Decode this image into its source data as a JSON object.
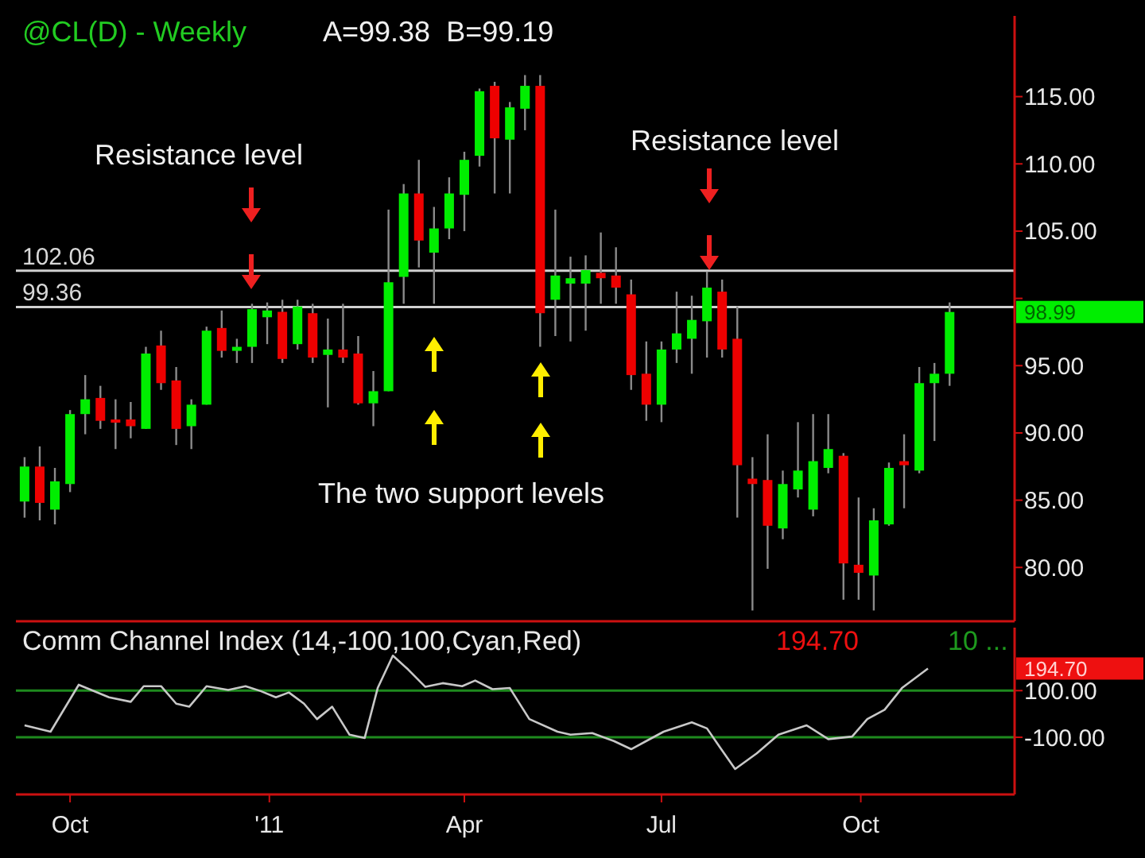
{
  "chart_data": [
    {
      "type": "candlestick",
      "title": "@CL(D) - Weekly",
      "subtitle": "A=99.38  B=99.19",
      "x": [
        "2010-09-10",
        "2010-09-17",
        "2010-09-24",
        "2010-10-01",
        "2010-10-08",
        "2010-10-15",
        "2010-10-22",
        "2010-10-29",
        "2010-11-05",
        "2010-11-12",
        "2010-11-19",
        "2010-11-26",
        "2010-12-03",
        "2010-12-10",
        "2010-12-17",
        "2010-12-24",
        "2010-12-31",
        "2011-01-07",
        "2011-01-14",
        "2011-01-21",
        "2011-01-28",
        "2011-02-04",
        "2011-02-11",
        "2011-02-18",
        "2011-02-25",
        "2011-03-04",
        "2011-03-11",
        "2011-03-18",
        "2011-03-25",
        "2011-04-01",
        "2011-04-08",
        "2011-04-15",
        "2011-04-22",
        "2011-04-29",
        "2011-05-06",
        "2011-05-13",
        "2011-05-20",
        "2011-05-27",
        "2011-06-03",
        "2011-06-10",
        "2011-06-17",
        "2011-06-24",
        "2011-07-01",
        "2011-07-08",
        "2011-07-15",
        "2011-07-22",
        "2011-07-29",
        "2011-08-05",
        "2011-08-12",
        "2011-08-19",
        "2011-08-26",
        "2011-09-02",
        "2011-09-09",
        "2011-09-16",
        "2011-09-23",
        "2011-09-30",
        "2011-10-07",
        "2011-10-14",
        "2011-10-21",
        "2011-10-28",
        "2011-11-04",
        "2011-11-11"
      ],
      "ohlc": [
        [
          84.9,
          88.2,
          83.7,
          87.5
        ],
        [
          87.5,
          89.0,
          83.5,
          84.8
        ],
        [
          84.3,
          87.4,
          83.2,
          86.4
        ],
        [
          86.2,
          91.7,
          85.6,
          91.4
        ],
        [
          91.4,
          94.3,
          89.9,
          92.5
        ],
        [
          92.6,
          93.5,
          90.3,
          90.9
        ],
        [
          91.0,
          92.5,
          88.8,
          90.8
        ],
        [
          91.0,
          92.3,
          89.6,
          90.5
        ],
        [
          90.3,
          96.4,
          90.3,
          95.9
        ],
        [
          96.5,
          97.6,
          93.2,
          93.7
        ],
        [
          93.9,
          94.9,
          89.1,
          90.3
        ],
        [
          90.5,
          92.5,
          88.8,
          92.1
        ],
        [
          92.1,
          97.9,
          92.1,
          97.6
        ],
        [
          97.8,
          99.1,
          95.6,
          96.1
        ],
        [
          96.1,
          97.0,
          95.2,
          96.4
        ],
        [
          96.4,
          99.6,
          95.2,
          99.2
        ],
        [
          98.6,
          99.7,
          96.6,
          99.1
        ],
        [
          99.0,
          99.9,
          95.2,
          95.5
        ],
        [
          96.6,
          99.9,
          96.2,
          99.4
        ],
        [
          98.9,
          99.6,
          95.2,
          95.6
        ],
        [
          95.8,
          98.5,
          91.9,
          96.2
        ],
        [
          96.2,
          99.6,
          95.2,
          95.6
        ],
        [
          95.9,
          97.2,
          92.1,
          92.2
        ],
        [
          92.2,
          94.6,
          90.5,
          93.1
        ],
        [
          93.1,
          106.6,
          93.1,
          101.2
        ],
        [
          101.6,
          108.5,
          99.6,
          107.8
        ],
        [
          107.8,
          110.3,
          102.3,
          104.3
        ],
        [
          103.4,
          106.8,
          99.6,
          105.2
        ],
        [
          105.2,
          109.0,
          104.4,
          107.8
        ],
        [
          107.7,
          110.9,
          105.0,
          110.3
        ],
        [
          110.6,
          115.6,
          109.8,
          115.4
        ],
        [
          115.8,
          116.1,
          107.8,
          111.9
        ],
        [
          111.8,
          114.6,
          107.8,
          114.2
        ],
        [
          114.1,
          116.6,
          112.5,
          115.8
        ],
        [
          115.8,
          116.6,
          96.4,
          98.9
        ],
        [
          99.9,
          106.6,
          97.2,
          101.7
        ],
        [
          101.1,
          103.1,
          96.8,
          101.5
        ],
        [
          101.1,
          103.2,
          97.6,
          102.1
        ],
        [
          101.9,
          104.9,
          99.6,
          101.5
        ],
        [
          101.7,
          103.8,
          99.6,
          100.8
        ],
        [
          100.3,
          101.4,
          93.2,
          94.3
        ],
        [
          94.4,
          96.8,
          90.9,
          92.1
        ],
        [
          92.1,
          96.8,
          90.8,
          96.2
        ],
        [
          96.2,
          100.5,
          95.2,
          97.4
        ],
        [
          97.0,
          100.2,
          94.4,
          98.4
        ],
        [
          98.3,
          102.0,
          95.6,
          100.8
        ],
        [
          100.5,
          101.4,
          95.6,
          96.2
        ],
        [
          97.0,
          99.4,
          83.7,
          87.6
        ],
        [
          86.6,
          88.2,
          76.8,
          86.2
        ],
        [
          86.5,
          89.9,
          79.9,
          83.1
        ],
        [
          82.9,
          87.2,
          82.1,
          86.2
        ],
        [
          85.8,
          90.8,
          85.2,
          87.2
        ],
        [
          84.3,
          91.4,
          83.8,
          87.9
        ],
        [
          87.4,
          91.4,
          87.0,
          88.8
        ],
        [
          88.3,
          88.5,
          77.6,
          80.3
        ],
        [
          80.2,
          85.2,
          77.6,
          79.6
        ],
        [
          79.4,
          84.4,
          76.8,
          83.5
        ],
        [
          83.2,
          87.8,
          83.1,
          87.4
        ],
        [
          87.9,
          89.9,
          84.4,
          87.6
        ],
        [
          87.2,
          94.9,
          87.0,
          93.7
        ],
        [
          93.7,
          95.2,
          89.4,
          94.4
        ],
        [
          94.4,
          99.7,
          93.5,
          98.99
        ]
      ],
      "colors": [
        "#00ee00",
        "#ee0000",
        "#00ee00",
        "#00ee00",
        "#00ee00",
        "#ee0000",
        "#ee0000",
        "#ee0000",
        "#00ee00",
        "#ee0000",
        "#ee0000",
        "#00ee00",
        "#00ee00",
        "#ee0000",
        "#00ee00",
        "#00ee00",
        "#00ee00",
        "#ee0000",
        "#00ee00",
        "#ee0000",
        "#00ee00",
        "#ee0000",
        "#ee0000",
        "#00ee00",
        "#00ee00",
        "#00ee00",
        "#ee0000",
        "#00ee00",
        "#00ee00",
        "#00ee00",
        "#00ee00",
        "#ee0000",
        "#00ee00",
        "#00ee00",
        "#ee0000",
        "#00ee00",
        "#00ee00",
        "#00ee00",
        "#ee0000",
        "#ee0000",
        "#ee0000",
        "#ee0000",
        "#00ee00",
        "#00ee00",
        "#00ee00",
        "#00ee00",
        "#ee0000",
        "#ee0000",
        "#ee0000",
        "#ee0000",
        "#00ee00",
        "#00ee00",
        "#00ee00",
        "#00ee00",
        "#ee0000",
        "#ee0000",
        "#00ee00",
        "#00ee00",
        "#ee0000",
        "#00ee00",
        "#00ee00",
        "#00ee00"
      ],
      "xlim": [
        "2010-09-06",
        "2011-12-11"
      ],
      "ylim": [
        76,
        121
      ],
      "yticks": [
        {
          "value": 80,
          "label": "80.00"
        },
        {
          "value": 85,
          "label": "85.00"
        },
        {
          "value": 90,
          "label": "90.00"
        },
        {
          "value": 95,
          "label": "95.00"
        },
        {
          "value": 100,
          "label": null
        },
        {
          "value": 105,
          "label": "105.00"
        },
        {
          "value": 110,
          "label": "110.00"
        },
        {
          "value": 115,
          "label": "115.00"
        }
      ],
      "tick_labels": "y",
      "ref_lines": [
        {
          "axis": "y",
          "value": 102.06,
          "label": "102.06",
          "color": "#d0d0d0"
        },
        {
          "axis": "y",
          "value": 99.36,
          "label": "99.36",
          "color": "#d0d0d0"
        }
      ],
      "annotations": [
        "Resistance level",
        "Resistance level",
        "The two support levels",
        "98.99"
      ],
      "grid": false
    },
    {
      "type": "line",
      "title": "Comm Channel Index (14,-100,100,Cyan,Red)",
      "series": [
        {
          "color": "#c8c8c8",
          "x": [
            "2010-09-10",
            "2010-09-22",
            "2010-10-05",
            "2010-10-19",
            "2010-10-29",
            "2010-11-04",
            "2010-11-12",
            "2010-11-19",
            "2010-11-25",
            "2010-12-03",
            "2010-12-13",
            "2010-12-21",
            "2010-12-28",
            "2011-01-04",
            "2011-01-10",
            "2011-01-17",
            "2011-01-23",
            "2011-01-30",
            "2011-02-07",
            "2011-02-14",
            "2011-02-20",
            "2011-02-27",
            "2011-03-06",
            "2011-03-14",
            "2011-03-22",
            "2011-03-31",
            "2011-04-06",
            "2011-04-14",
            "2011-04-22",
            "2011-05-01",
            "2011-05-14",
            "2011-05-20",
            "2011-05-30",
            "2011-06-09",
            "2011-06-17",
            "2011-06-24",
            "2011-07-02",
            "2011-07-15",
            "2011-07-22",
            "2011-07-28",
            "2011-08-04",
            "2011-08-14",
            "2011-08-24",
            "2011-09-06",
            "2011-09-16",
            "2011-09-27",
            "2011-10-04",
            "2011-10-12",
            "2011-10-20",
            "2011-11-01"
          ],
          "values": [
            -49,
            -76,
            125,
            71,
            52,
            119,
            119,
            44,
            31,
            119,
            103,
            119,
            98,
            71,
            92,
            44,
            -22,
            31,
            -89,
            -103,
            111,
            250,
            191,
            116,
            132,
            119,
            143,
            106,
            111,
            -22,
            -76,
            -89,
            -82,
            -116,
            -151,
            -116,
            -76,
            -36,
            -62,
            -143,
            -236,
            -169,
            -89,
            -49,
            -108,
            -97,
            -22,
            18,
            111,
            194.7
          ]
        }
      ],
      "xlim": [
        "2010-09-06",
        "2011-12-11"
      ],
      "xticks": [
        {
          "value": "2010-10-01",
          "label": "Oct"
        },
        {
          "value": "2011-01-01",
          "label": "'11"
        },
        {
          "value": "2011-04-01",
          "label": "Apr"
        },
        {
          "value": "2011-07-01",
          "label": "Jul"
        },
        {
          "value": "2011-10-01",
          "label": "Oct"
        }
      ],
      "ylim": [
        -345,
        370
      ],
      "yticks": [
        {
          "value": 100,
          "label": "100.00"
        },
        {
          "value": -100,
          "label": "-100.00"
        }
      ],
      "ref_lines": [
        {
          "axis": "y",
          "value": 100,
          "color": "#1e8a1e"
        },
        {
          "axis": "y",
          "value": -100,
          "color": "#1e8a1e"
        }
      ],
      "annotations": [
        "194.70",
        "10 ...",
        "194.70"
      ],
      "grid": false,
      "marker": "none",
      "line_style": "solid"
    }
  ]
}
